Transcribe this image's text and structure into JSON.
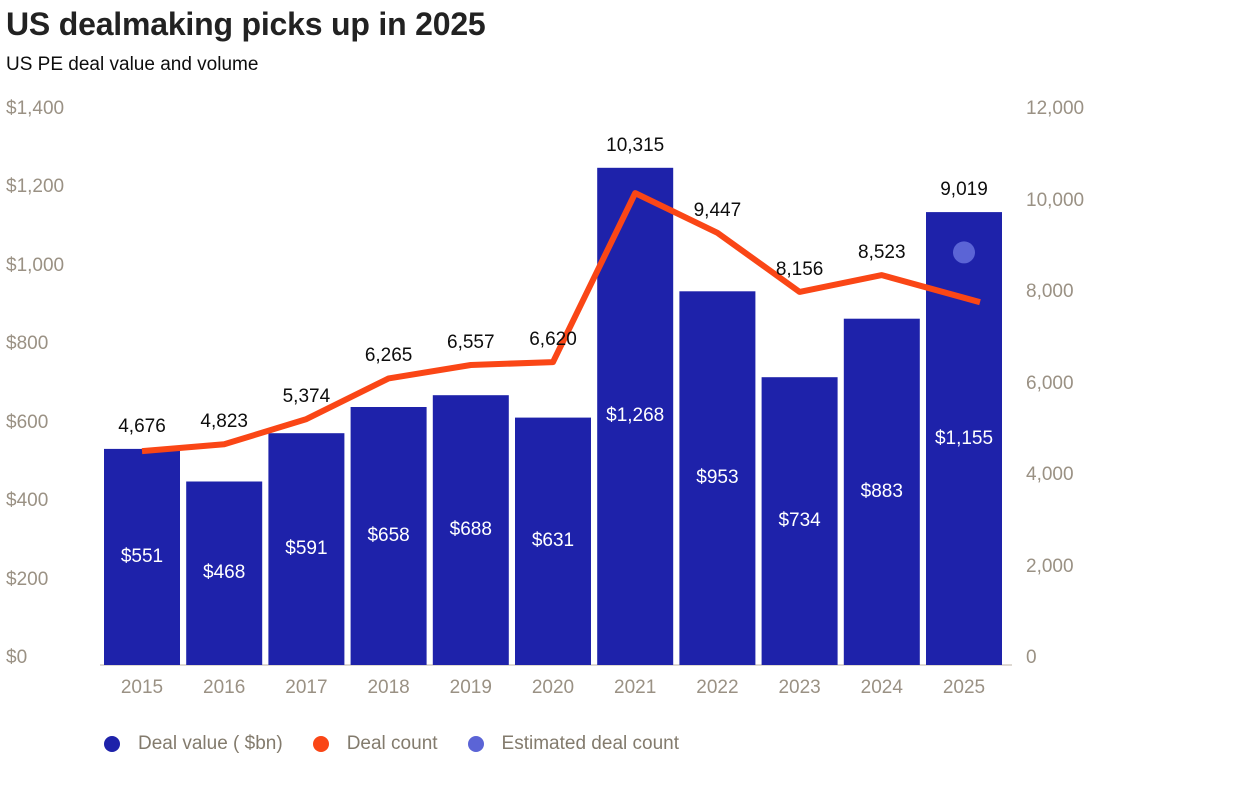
{
  "chart_data": {
    "type": "combo: bar (left axis) + line (right axis) + single estimated point",
    "title": "US dealmaking picks up in 2025",
    "subtitle": "US PE deal value and volume",
    "categories": [
      "2015",
      "2016",
      "2017",
      "2018",
      "2019",
      "2020",
      "2021",
      "2022",
      "2023",
      "2024",
      "2025"
    ],
    "series": [
      {
        "name": "Deal value ($bn)",
        "chart_type": "bar",
        "axis": "left",
        "color": "#1e22aa",
        "values": [
          551,
          468,
          591,
          658,
          688,
          631,
          1268,
          953,
          734,
          883,
          1155
        ],
        "data_labels": [
          "$551",
          "$468",
          "$591",
          "$658",
          "$688",
          "$631",
          "$1,268",
          "$953",
          "$734",
          "$883",
          "$1,155"
        ],
        "label_color": "#ffffff"
      },
      {
        "name": "Deal count",
        "chart_type": "line",
        "axis": "right",
        "color": "#fa4616",
        "values": [
          4676,
          4823,
          5374,
          6265,
          6557,
          6620,
          10315,
          9447,
          8156,
          8523,
          7930
        ],
        "data_labels": [
          "4,676",
          "4,823",
          "5,374",
          "6,265",
          "6,557",
          "6,620",
          "10,315",
          "9,447",
          "8,156",
          "8,523",
          null
        ],
        "note": "2025 endpoint of the line is unlabeled; value ~7,930 estimated from its plotted position"
      },
      {
        "name": "Estimated deal count",
        "chart_type": "point",
        "axis": "right",
        "color": "#5b64d6",
        "category": "2025",
        "value": 9019,
        "data_label": "9,019"
      }
    ],
    "left_axis": {
      "ticks": [
        "$0",
        "$200",
        "$400",
        "$600",
        "$800",
        "$1,000",
        "$1,200",
        "$1,400"
      ],
      "values": [
        0,
        200,
        400,
        600,
        800,
        1000,
        1200,
        1400
      ],
      "range": [
        0,
        1400
      ]
    },
    "right_axis": {
      "ticks": [
        "0",
        "2,000",
        "4,000",
        "6,000",
        "8,000",
        "10,000",
        "12,000"
      ],
      "values": [
        0,
        2000,
        4000,
        6000,
        8000,
        10000,
        12000
      ],
      "range": [
        0,
        12000
      ]
    },
    "gridlines": false,
    "legend": {
      "position": "bottom-left",
      "entries": [
        {
          "label": "Deal value ( $bn)",
          "color": "#1e22aa",
          "marker": "circle"
        },
        {
          "label": "Deal count",
          "color": "#fa4616",
          "marker": "circle"
        },
        {
          "label": "Estimated deal count",
          "color": "#5b64d6",
          "marker": "circle"
        }
      ]
    },
    "colors": {
      "bar": "#1e22aa",
      "line": "#fa4616",
      "estimated_point": "#5b64d6",
      "axis_text": "#9a9184",
      "data_label_text": "#0d0d0d",
      "bar_label_text": "#ffffff",
      "baseline": "#ded9d2",
      "legend_text": "#837b6d",
      "title_text": "#222222",
      "background": "#ffffff"
    }
  }
}
